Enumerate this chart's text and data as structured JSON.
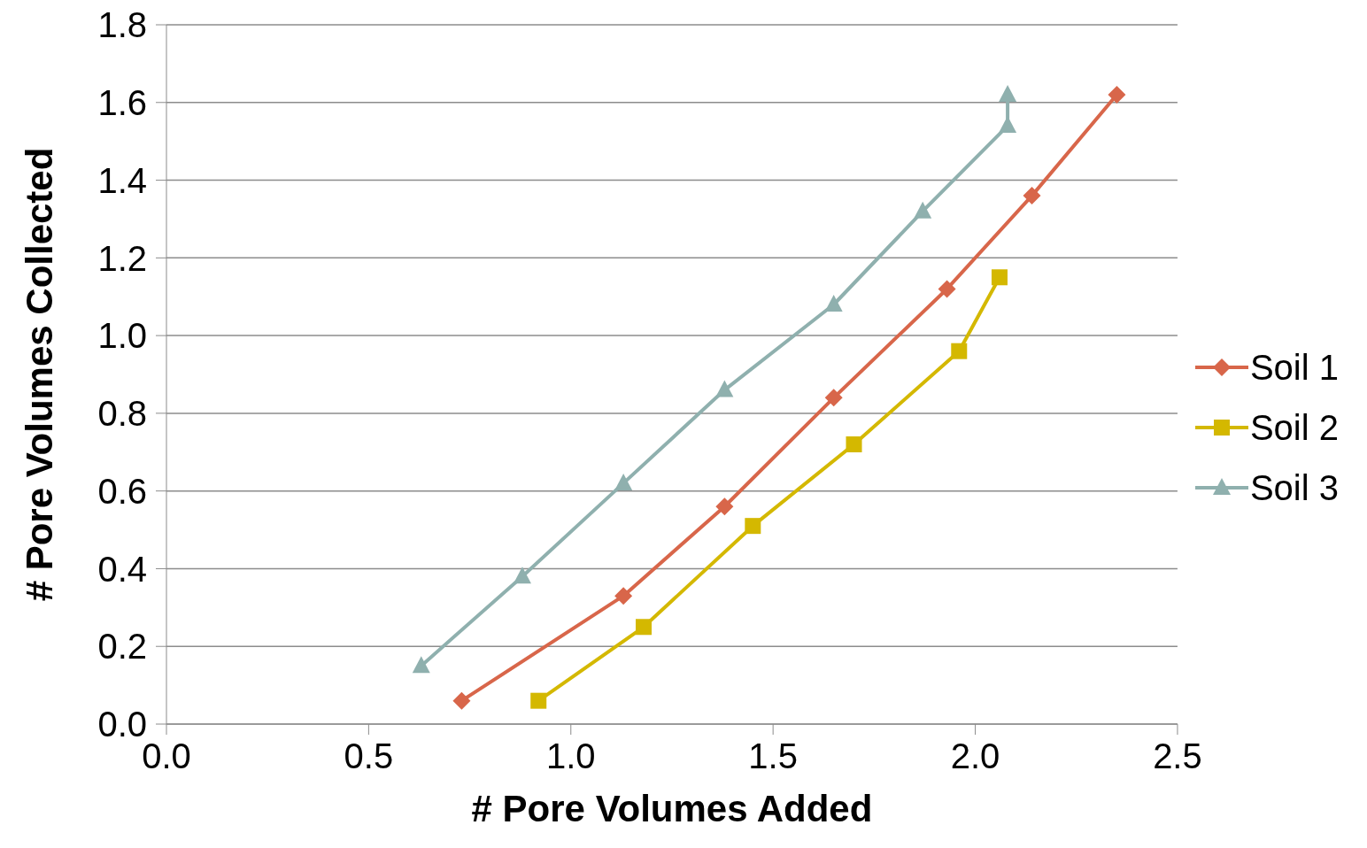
{
  "chart_data": {
    "type": "line",
    "xlabel": "# Pore Volumes Added",
    "ylabel": "# Pore Volumes Collected",
    "xlim": [
      0,
      2.5
    ],
    "xticks": [
      {
        "value": 0,
        "label": "0.0"
      },
      {
        "value": 0.5,
        "label": "0.5"
      },
      {
        "value": 1,
        "label": "1.0"
      },
      {
        "value": 1.5,
        "label": "1.5"
      },
      {
        "value": 2,
        "label": "2.0"
      },
      {
        "value": 2.5,
        "label": "2.5"
      }
    ],
    "ylim": [
      0,
      1.8
    ],
    "yticks": [
      {
        "value": 0,
        "label": "0.0"
      },
      {
        "value": 0.2,
        "label": "0.2"
      },
      {
        "value": 0.4,
        "label": "0.4"
      },
      {
        "value": 0.6,
        "label": "0.6"
      },
      {
        "value": 0.8,
        "label": "0.8"
      },
      {
        "value": 1,
        "label": "1.0"
      },
      {
        "value": 1.2,
        "label": "1.2"
      },
      {
        "value": 1.4,
        "label": "1.4"
      },
      {
        "value": 1.6,
        "label": "1.6"
      },
      {
        "value": 1.8,
        "label": "1.8"
      }
    ],
    "grid": "y",
    "legend": "right",
    "line_style": "solid",
    "series": [
      {
        "name": "Soil 1",
        "color": "#d8664a",
        "marker": "diamond",
        "x": [
          0.73,
          1.13,
          1.38,
          1.65,
          1.93,
          2.14,
          2.35
        ],
        "values": [
          0.06,
          0.33,
          0.56,
          0.84,
          1.12,
          1.36,
          1.62
        ]
      },
      {
        "name": "Soil 2",
        "color": "#d4b800",
        "marker": "square",
        "x": [
          0.92,
          1.18,
          1.45,
          1.7,
          1.96,
          2.06
        ],
        "values": [
          0.06,
          0.25,
          0.51,
          0.72,
          0.96,
          1.15
        ]
      },
      {
        "name": "Soil 3",
        "color": "#8fb0ae",
        "marker": "triangle",
        "x": [
          0.63,
          0.88,
          1.13,
          1.38,
          1.65,
          1.87,
          2.08,
          2.08
        ],
        "values": [
          0.15,
          0.38,
          0.62,
          0.86,
          1.08,
          1.32,
          1.54,
          1.62
        ]
      }
    ]
  }
}
